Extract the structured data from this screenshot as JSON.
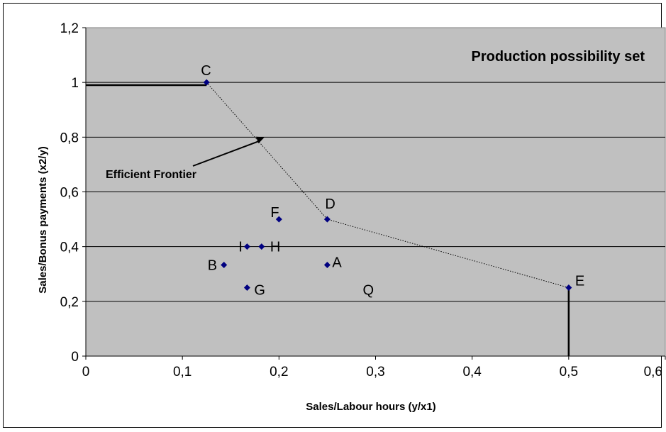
{
  "chart_data": {
    "type": "scatter",
    "title": "Production possibility set",
    "xlabel": "Sales/Labour hours (y/x1)",
    "ylabel": "Sales/Bonus payments (x2/y)",
    "xlim": [
      0,
      0.6
    ],
    "ylim": [
      0,
      1.2
    ],
    "x_ticks": [
      "0",
      "0,1",
      "0,2",
      "0,3",
      "0,4",
      "0,5",
      "0,6"
    ],
    "y_ticks": [
      "0",
      "0,2",
      "0,4",
      "0,6",
      "0,8",
      "1",
      "1,2"
    ],
    "grid": "horizontal",
    "points": [
      {
        "label": "C",
        "x": 0.125,
        "y": 1.0
      },
      {
        "label": "D",
        "x": 0.25,
        "y": 0.5
      },
      {
        "label": "E",
        "x": 0.5,
        "y": 0.25
      },
      {
        "label": "F",
        "x": 0.2,
        "y": 0.5
      },
      {
        "label": "I",
        "x": 0.167,
        "y": 0.4
      },
      {
        "label": "H",
        "x": 0.182,
        "y": 0.4
      },
      {
        "label": "B",
        "x": 0.143,
        "y": 0.333
      },
      {
        "label": "A",
        "x": 0.25,
        "y": 0.333
      },
      {
        "label": "G",
        "x": 0.167,
        "y": 0.25
      }
    ],
    "unplotted_labels": [
      {
        "label": "Q",
        "x": 0.3,
        "y": 0.25
      }
    ],
    "frontier": [
      [
        0.125,
        1.0
      ],
      [
        0.25,
        0.5
      ],
      [
        0.5,
        0.25
      ]
    ],
    "frontier_extensions": [
      [
        [
          0,
          0.99
        ],
        [
          0.125,
          0.99
        ]
      ],
      [
        [
          0.5,
          0.25
        ],
        [
          0.5,
          0
        ]
      ]
    ],
    "annotation": {
      "text": "Efficient Frontier",
      "arrow_to": [
        0.185,
        0.8
      ]
    },
    "colors": {
      "plot_bg": "#c0c0c0",
      "marker": "#000080",
      "grid": "#000000"
    }
  }
}
